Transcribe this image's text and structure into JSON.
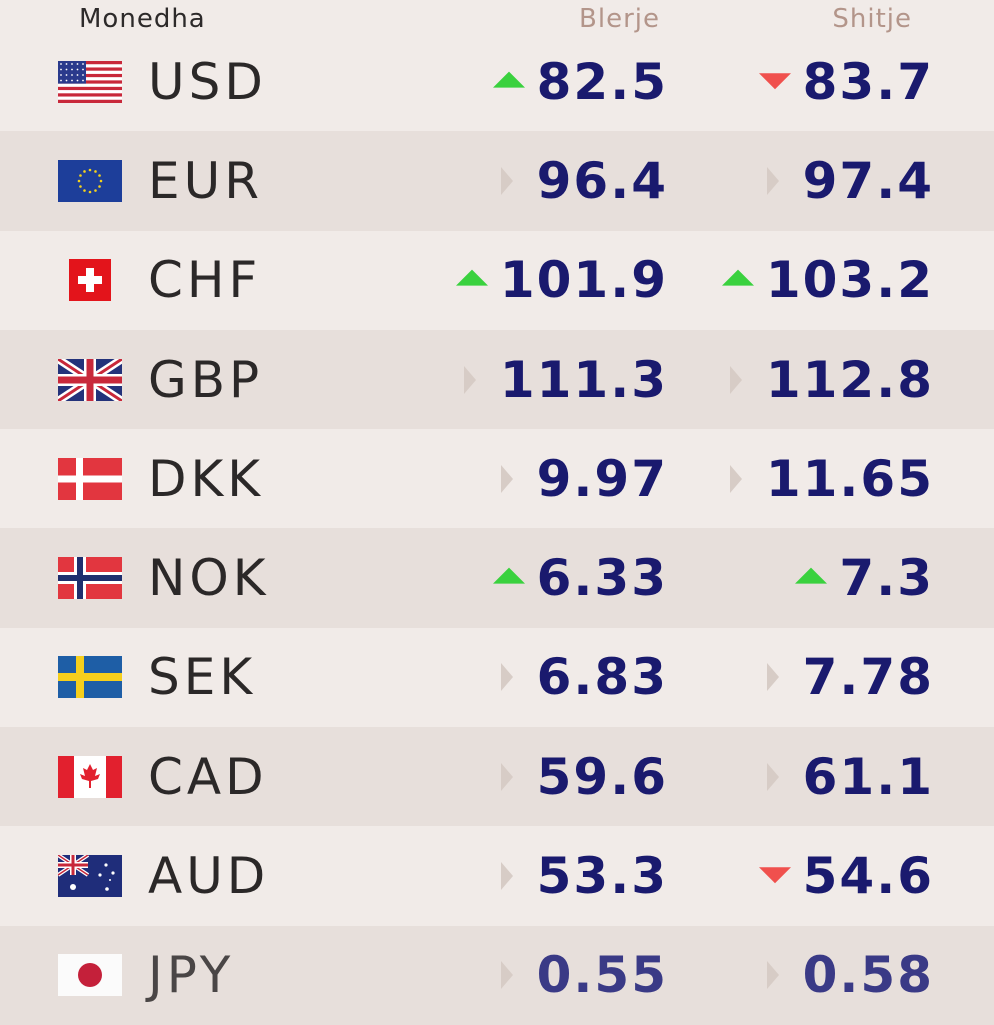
{
  "header": {
    "currency": "Monedha",
    "buy": "Blerje",
    "sell": "Shitje"
  },
  "colors": {
    "up": "#3ad13e",
    "down": "#f0504d",
    "flat": "#d7ccc6",
    "value": "#1a1a6e"
  },
  "rows": [
    {
      "code": "USD",
      "flag": "usa-flag-icon",
      "buy": "82.5",
      "buy_trend": "up",
      "sell": "83.7",
      "sell_trend": "down"
    },
    {
      "code": "EUR",
      "flag": "eu-flag-icon",
      "buy": "96.4",
      "buy_trend": "flat",
      "sell": "97.4",
      "sell_trend": "flat"
    },
    {
      "code": "CHF",
      "flag": "swiss-flag-icon",
      "buy": "101.9",
      "buy_trend": "up",
      "sell": "103.2",
      "sell_trend": "up"
    },
    {
      "code": "GBP",
      "flag": "uk-flag-icon",
      "buy": "111.3",
      "buy_trend": "flat",
      "sell": "112.8",
      "sell_trend": "flat"
    },
    {
      "code": "DKK",
      "flag": "denmark-flag-icon",
      "buy": "9.97",
      "buy_trend": "flat",
      "sell": "11.65",
      "sell_trend": "flat"
    },
    {
      "code": "NOK",
      "flag": "norway-flag-icon",
      "buy": "6.33",
      "buy_trend": "up",
      "sell": "7.3",
      "sell_trend": "up"
    },
    {
      "code": "SEK",
      "flag": "sweden-flag-icon",
      "buy": "6.83",
      "buy_trend": "flat",
      "sell": "7.78",
      "sell_trend": "flat"
    },
    {
      "code": "CAD",
      "flag": "canada-flag-icon",
      "buy": "59.6",
      "buy_trend": "flat",
      "sell": "61.1",
      "sell_trend": "flat"
    },
    {
      "code": "AUD",
      "flag": "australia-flag-icon",
      "buy": "53.3",
      "buy_trend": "flat",
      "sell": "54.6",
      "sell_trend": "down"
    },
    {
      "code": "JPY",
      "flag": "japan-flag-icon",
      "buy": "0.55",
      "buy_trend": "flat",
      "sell": "0.58",
      "sell_trend": "flat"
    }
  ]
}
